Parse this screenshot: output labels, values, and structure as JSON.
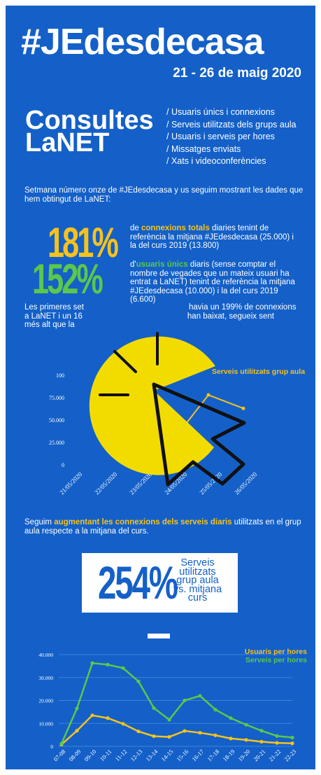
{
  "header": {
    "hashtag": "#JEdesdecasa",
    "dates": "21 - 26 de maig 2020"
  },
  "consultes": {
    "title_line1": "Consultes",
    "title_line2": "LaNET",
    "menu": [
      "/ Usuaris únics i connexions",
      "/ Serveis utilitzats dels grups aula",
      "/ Usuaris i serveis per hores",
      "/ Missatges enviats",
      "/ Xats i videoconferències"
    ]
  },
  "intro": "Setmana número onze de #JEdesdecasa y us seguim mostrant les dades que hem obtingut de LaNET:",
  "stats": {
    "s181": {
      "value": "181%",
      "pre": "de ",
      "highlight": "connexions totals",
      "post": " diaries tenint de referència la mitjana #JEdesdecasa (25.000) i la del curs 2019 (13.800)"
    },
    "s152": {
      "value": "152%",
      "pre": "d'",
      "highlight": "usuaris únics",
      "post": " diaris (sense comptar el nombre de vegades que un mateix usuari ha entrat a LaNET) tenint de referència la mitjana #JEdesdecasa (10.000) i la del curs 2019 (6.600)"
    }
  },
  "paragraph2": {
    "part1": "Les primeres set",
    "part2": "havia un 199% de connexions",
    "part3": "a LaNET i un 16",
    "part4": "han baixat, segueix sent",
    "part5": "més alt que la"
  },
  "paragraph3": {
    "pre": "Seguim ",
    "highlight": "augmentant les connexions dels serveis diaris",
    "post": " utilitzats en el grup aula respecte a la mitjana del curs."
  },
  "card": {
    "value": "254%",
    "text_lines": [
      "Serveis",
      "utilitzats",
      "grup aula",
      "vs. mitjana",
      "curs"
    ]
  },
  "colors": {
    "background": "#1460c8",
    "yellow": "#f6c21d",
    "green": "#5bc74b",
    "pacman_yellow": "#f2dc00",
    "white": "#ffffff"
  },
  "icons": {
    "overlay": "pacman-cursor-click-icon"
  },
  "chart_data": [
    {
      "type": "line",
      "series": [
        {
          "name": "Serveis utilitzats grup aula",
          "values": [
            null,
            null,
            18000,
            28000,
            78000,
            63000
          ]
        }
      ],
      "categories": [
        "21/05/2020",
        "22/05/2020",
        "23/05/2020",
        "24/05/2020",
        "25/05/2020",
        "26/05/2020"
      ],
      "y_ticks": [
        "0",
        "25.000",
        "50.000",
        "75.000",
        "100"
      ],
      "ylim": [
        0,
        100000
      ],
      "grid": false,
      "legend_placement": "top-right"
    },
    {
      "type": "line",
      "categories": [
        "07-08",
        "08-09",
        "09-10",
        "10-11",
        "11-12",
        "12-13",
        "13-14",
        "14-15",
        "15-16",
        "16-17",
        "17-18",
        "18-19",
        "19-20",
        "20-21",
        "21-22",
        "22-23"
      ],
      "series": [
        {
          "name": "Usuaris per hores",
          "values": [
            800,
            6800,
            13500,
            12300,
            9800,
            6500,
            4400,
            4100,
            6700,
            5900,
            4800,
            3400,
            2800,
            2000,
            1500,
            1300
          ]
        },
        {
          "name": "Serveis per hores",
          "values": [
            1200,
            16500,
            36300,
            35600,
            34100,
            28300,
            16700,
            11600,
            20000,
            22000,
            16000,
            12300,
            9400,
            6800,
            4500,
            3800
          ]
        }
      ],
      "y_ticks": [
        "0",
        "10.000",
        "20.000",
        "30.000",
        "40.000"
      ],
      "ylim": [
        0,
        40000
      ],
      "grid": true,
      "legend_placement": "top-right"
    }
  ]
}
